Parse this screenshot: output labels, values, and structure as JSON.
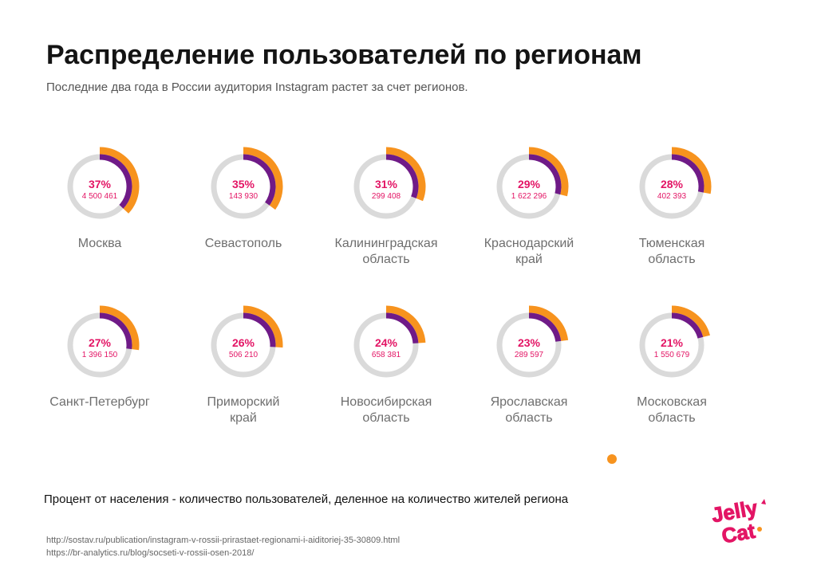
{
  "title": "Распределение пользователей по регионам",
  "subtitle": "Последние два года в России аудитория Instagram растет за счет регионов.",
  "footnote": "Процент от населения - количество пользователей, деленное на количество жителей региона",
  "sources": [
    "http://sostav.ru/publication/instagram-v-rossii-prirastaet-regionami-i-aiditoriej-35-30809.html",
    "https://br-analytics.ru/blog/socseti-v-rossii-osen-2018/"
  ],
  "logo_text": [
    "Jelly",
    "Cat"
  ],
  "colors": {
    "accent": "#e31565",
    "orange": "#f7931e",
    "purple": "#6f1a87",
    "track": "#dadada",
    "label": "#6e6e6e"
  },
  "chart_data": {
    "type": "pie",
    "title": "Распределение пользователей по регионам",
    "unit": "percent of population",
    "regions": [
      {
        "name": [
          "Москва"
        ],
        "pct": 37,
        "pct_label": "37%",
        "users": "4 500 461"
      },
      {
        "name": [
          "Севастополь"
        ],
        "pct": 35,
        "pct_label": "35%",
        "users": "143 930"
      },
      {
        "name": [
          "Калининградская",
          "область"
        ],
        "pct": 31,
        "pct_label": "31%",
        "users": "299 408"
      },
      {
        "name": [
          "Краснодарский",
          "край"
        ],
        "pct": 29,
        "pct_label": "29%",
        "users": "1 622 296"
      },
      {
        "name": [
          "Тюменская",
          "область"
        ],
        "pct": 28,
        "pct_label": "28%",
        "users": "402 393"
      },
      {
        "name": [
          "Санкт-Петербург"
        ],
        "pct": 27,
        "pct_label": "27%",
        "users": "1 396 150"
      },
      {
        "name": [
          "Приморский",
          "край"
        ],
        "pct": 26,
        "pct_label": "26%",
        "users": "506 210"
      },
      {
        "name": [
          "Новосибирская",
          "область"
        ],
        "pct": 24,
        "pct_label": "24%",
        "users": "658 381"
      },
      {
        "name": [
          "Ярославская",
          "область"
        ],
        "pct": 23,
        "pct_label": "23%",
        "users": "289 597"
      },
      {
        "name": [
          "Московская",
          "область"
        ],
        "pct": 21,
        "pct_label": "21%",
        "users": "1 550 679"
      }
    ]
  }
}
